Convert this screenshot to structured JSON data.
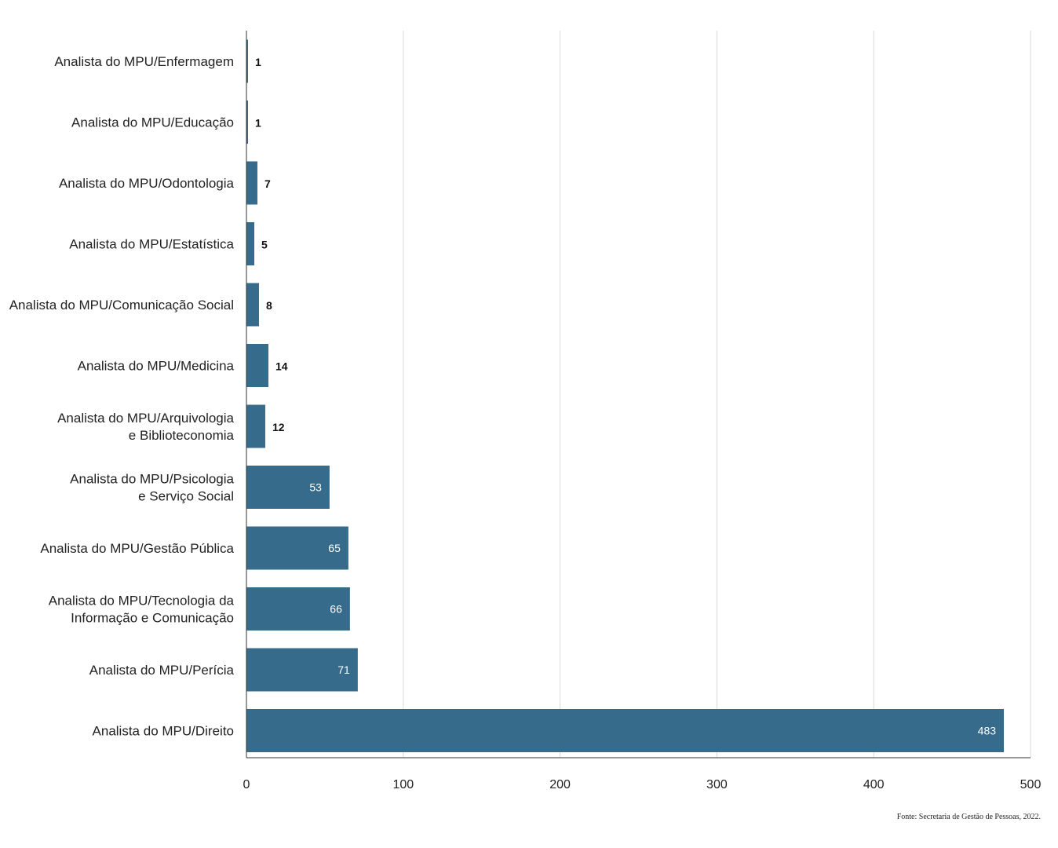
{
  "chart_data": {
    "type": "bar",
    "orientation": "horizontal",
    "categories": [
      "Analista do MPU/Enfermagem",
      "Analista do MPU/Educação",
      "Analista do MPU/Odontologia",
      "Analista do MPU/Estatística",
      "Analista do MPU/Comunicação Social",
      "Analista do MPU/Medicina",
      "Analista do MPU/Arquivologia e Biblioteconomia",
      "Analista do MPU/Psicologia e Serviço Social",
      "Analista do MPU/Gestão Pública",
      "Analista do MPU/Tecnologia da Informação e Comunicação",
      "Analista do MPU/Perícia",
      "Analista do MPU/Direito"
    ],
    "category_lines": [
      [
        "Analista do MPU/Enfermagem"
      ],
      [
        "Analista do MPU/Educação"
      ],
      [
        "Analista do MPU/Odontologia"
      ],
      [
        "Analista do MPU/Estatística"
      ],
      [
        "Analista do MPU/Comunicação Social"
      ],
      [
        "Analista do MPU/Medicina"
      ],
      [
        "Analista do MPU/Arquivologia",
        "e Biblioteconomia"
      ],
      [
        "Analista do MPU/Psicologia",
        "e Serviço Social"
      ],
      [
        "Analista do MPU/Gestão Pública"
      ],
      [
        "Analista do MPU/Tecnologia da",
        "Informação e Comunicação"
      ],
      [
        "Analista do MPU/Perícia"
      ],
      [
        "Analista do MPU/Direito"
      ]
    ],
    "values": [
      1,
      1,
      7,
      5,
      8,
      14,
      12,
      53,
      65,
      66,
      71,
      483
    ],
    "xlim": [
      0,
      500
    ],
    "xticks": [
      0,
      100,
      200,
      300,
      400,
      500
    ],
    "grid": true,
    "bar_color": "#376b8c",
    "title": "",
    "xlabel": "",
    "ylabel": ""
  },
  "source": "Fonte: Secretaria de Gestão de Pessoas, 2022."
}
